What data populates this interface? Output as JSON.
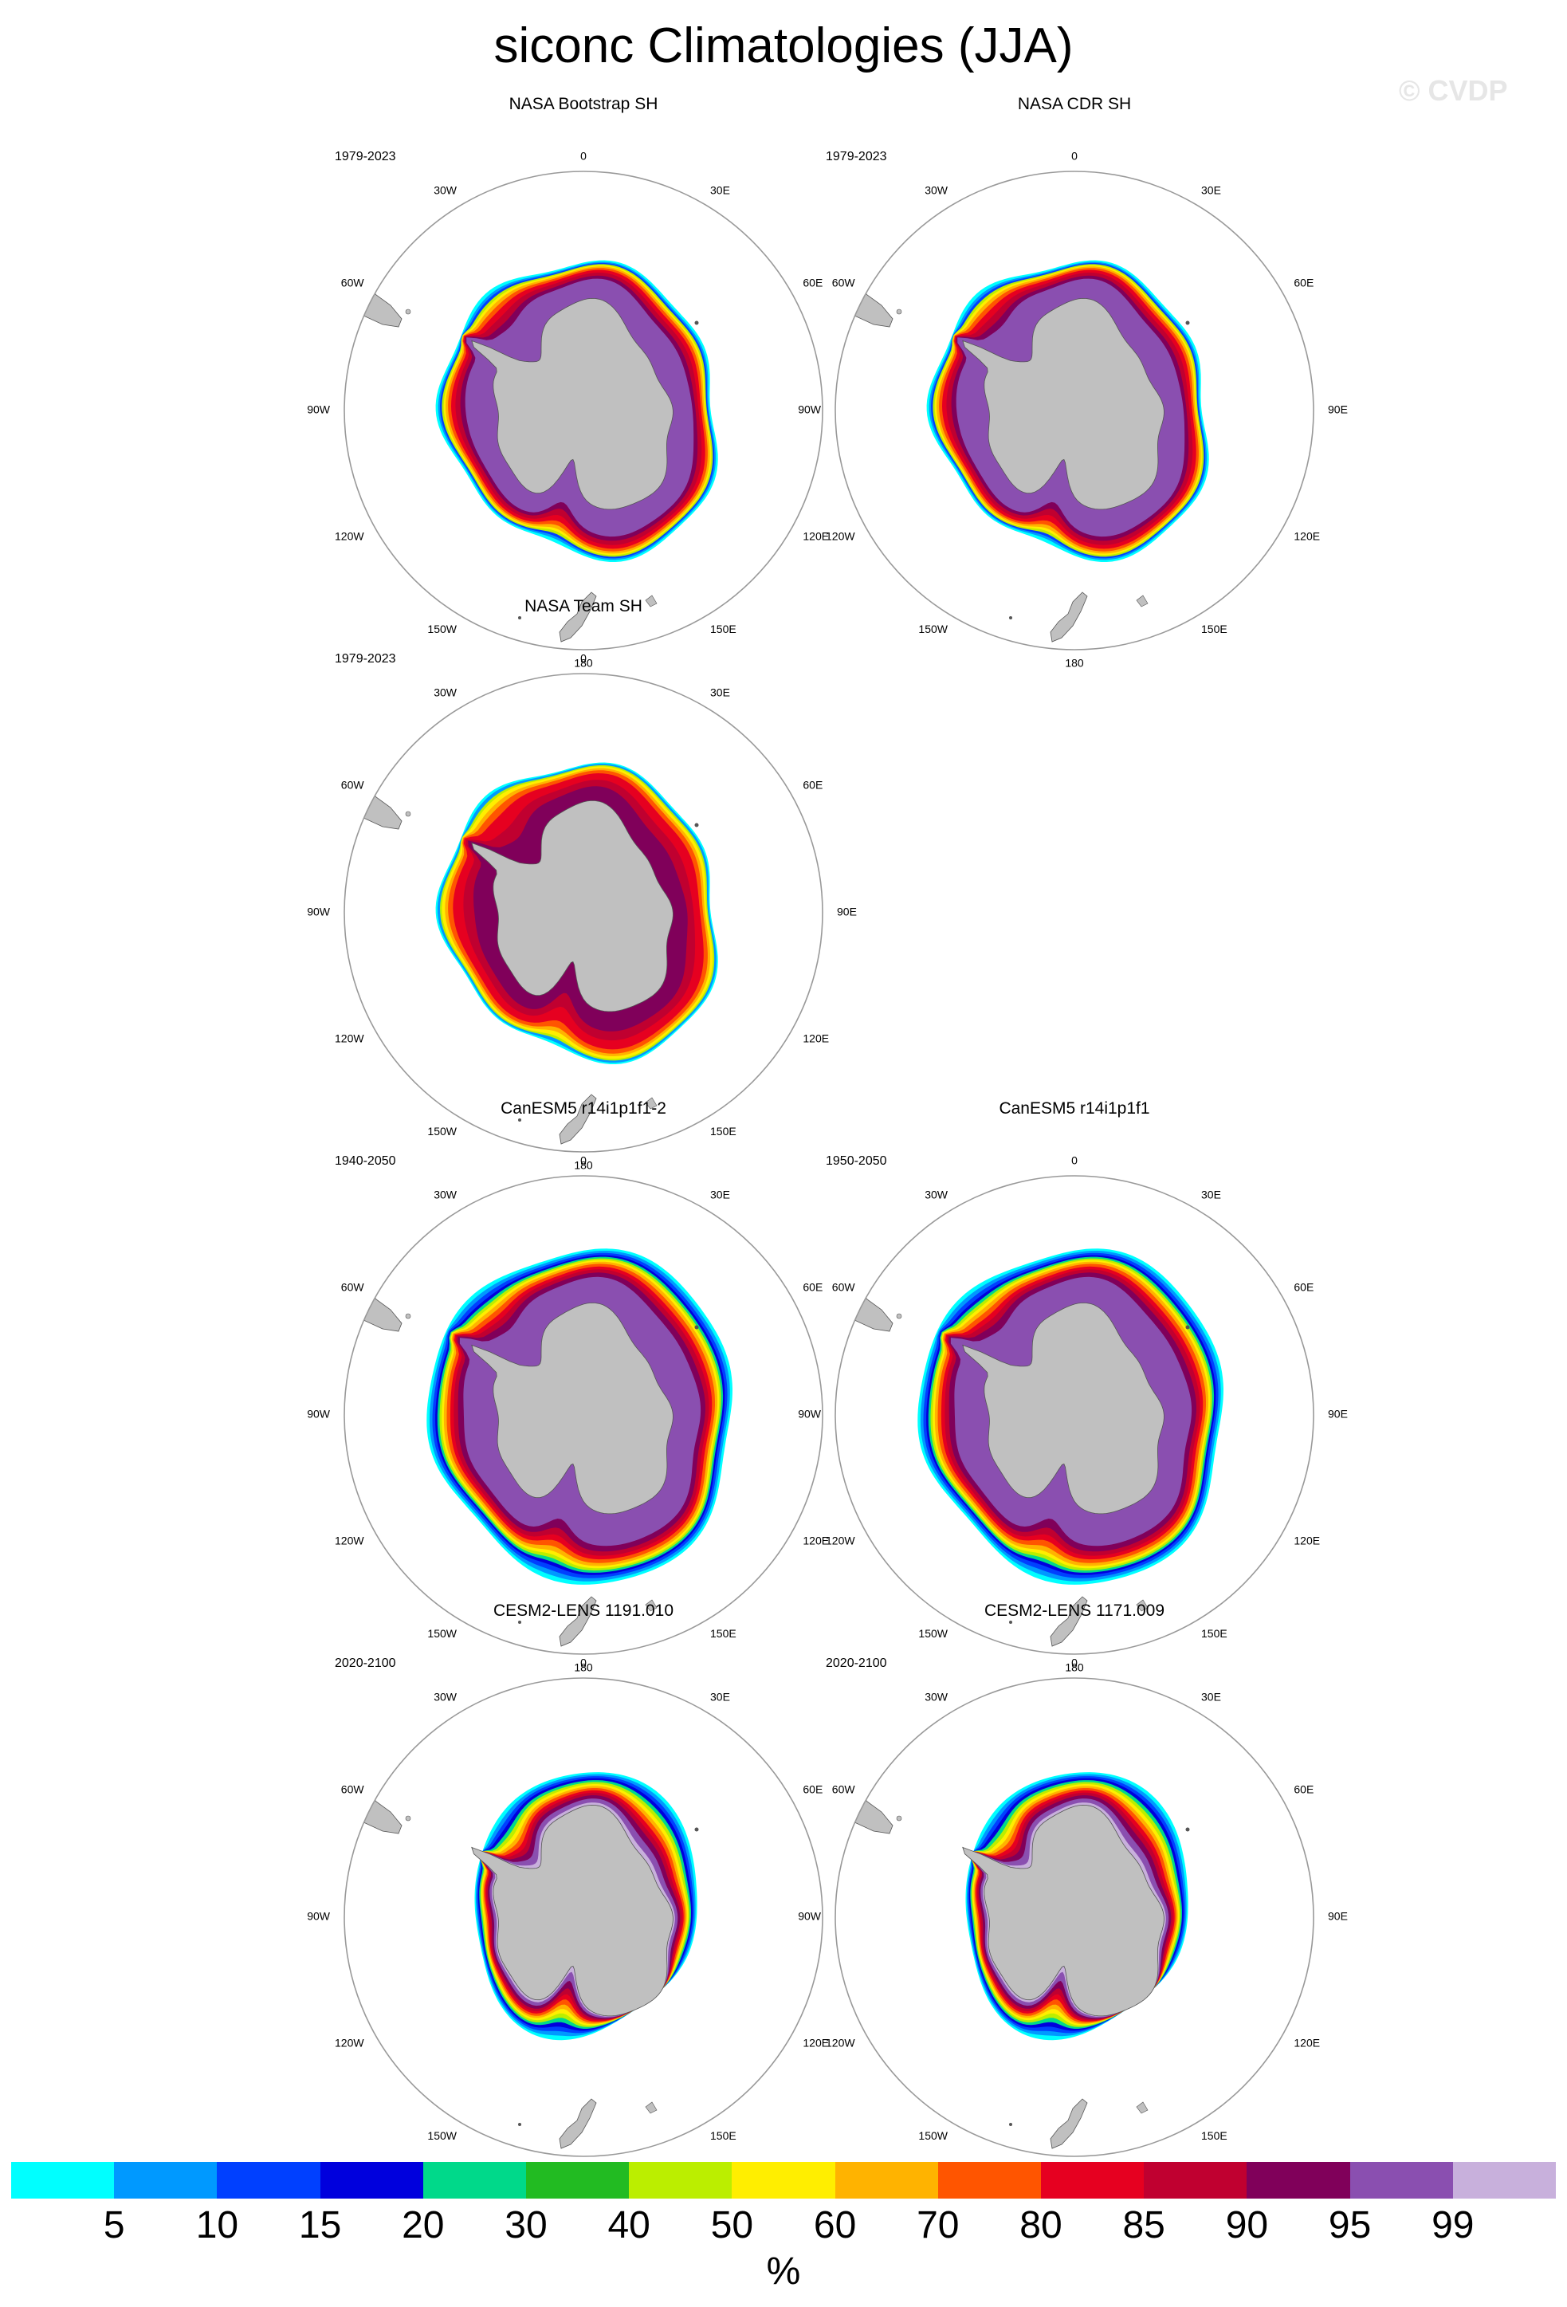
{
  "figure": {
    "title": "siconc Climatologies (JJA)",
    "watermark": "© CVDP"
  },
  "longitude_labels": [
    "0",
    "30E",
    "60E",
    "90E",
    "120E",
    "150E",
    "180",
    "150W",
    "120W",
    "90W",
    "60W",
    "30W"
  ],
  "colors": {
    "land": "#c0c0c0",
    "ocean": "#ffffff",
    "map_border": "#999999"
  },
  "panels": [
    {
      "title": "NASA Bootstrap SH",
      "period": "1979-2023",
      "row": 0,
      "col": 0,
      "profile": "obs_bootstrap"
    },
    {
      "title": "NASA CDR SH",
      "period": "1979-2023",
      "row": 0,
      "col": 1,
      "profile": "obs_cdr"
    },
    {
      "title": "NASA Team SH",
      "period": "1979-2023",
      "row": 1,
      "col": 0,
      "profile": "obs_team"
    },
    {
      "title": "CanESM5 r14i1p1f1-2",
      "period": "1940-2050",
      "row": 2,
      "col": 0,
      "profile": "model_canesm"
    },
    {
      "title": "CanESM5 r14i1p1f1",
      "period": "1950-2050",
      "row": 2,
      "col": 1,
      "profile": "model_canesm"
    },
    {
      "title": "CESM2-LENS 1191.010",
      "period": "2020-2100",
      "row": 3,
      "col": 0,
      "profile": "model_cesm"
    },
    {
      "title": "CESM2-LENS 1171.009",
      "period": "2020-2100",
      "row": 3,
      "col": 1,
      "profile": "model_cesm"
    }
  ],
  "colorbar": {
    "colors": [
      "#00ffff",
      "#0099ff",
      "#0040ff",
      "#0000dd",
      "#00d98a",
      "#22bb22",
      "#bbee00",
      "#ffee00",
      "#ffb300",
      "#ff5500",
      "#e60020",
      "#c00030",
      "#80005a",
      "#8a4fb0",
      "#c8b0dc"
    ],
    "labels": [
      "5",
      "10",
      "15",
      "20",
      "30",
      "40",
      "50",
      "60",
      "70",
      "80",
      "85",
      "90",
      "95",
      "99"
    ],
    "unit": "%"
  }
}
